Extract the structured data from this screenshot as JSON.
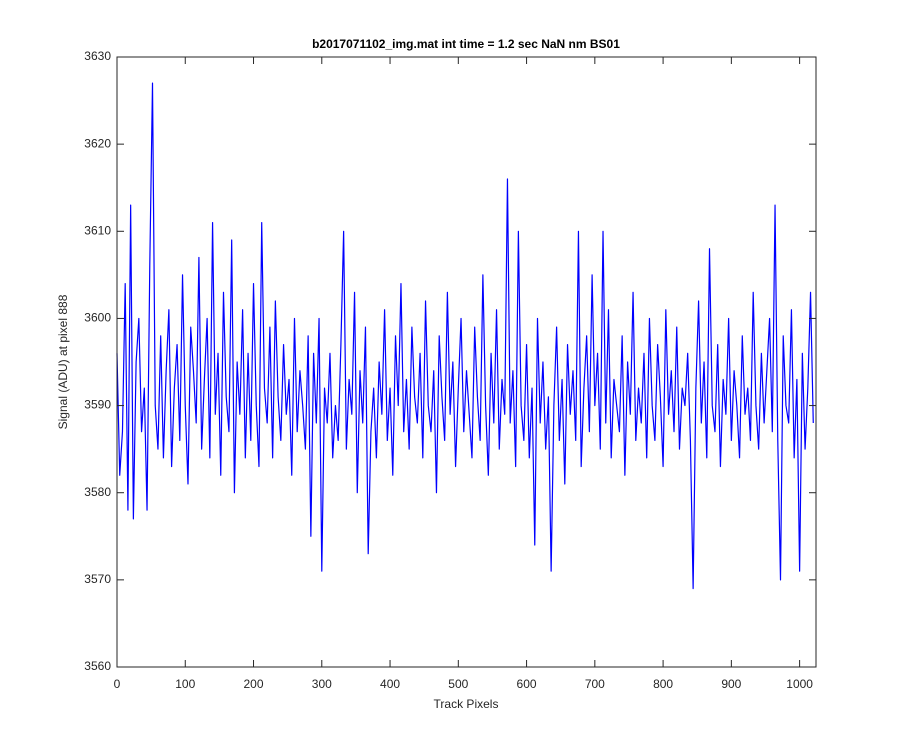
{
  "chart_data": {
    "type": "line",
    "title": "b2017071102_img.mat int time = 1.2 sec  NaN nm BS01",
    "xlabel": "Track Pixels",
    "ylabel": "Signal (ADU) at pixel 888",
    "xlim": [
      0,
      1024
    ],
    "xticks": [
      0,
      100,
      200,
      300,
      400,
      500,
      600,
      700,
      800,
      900,
      1000
    ],
    "ylim": [
      3560,
      3630
    ],
    "yticks": [
      3560,
      3570,
      3580,
      3590,
      3600,
      3610,
      3620,
      3630
    ],
    "grid": false,
    "x": [
      0,
      4,
      8,
      12,
      16,
      20,
      24,
      28,
      32,
      36,
      40,
      44,
      48,
      52,
      56,
      60,
      64,
      68,
      72,
      76,
      80,
      84,
      88,
      92,
      96,
      100,
      104,
      108,
      112,
      116,
      120,
      124,
      128,
      132,
      136,
      140,
      144,
      148,
      152,
      156,
      160,
      164,
      168,
      172,
      176,
      180,
      184,
      188,
      192,
      196,
      200,
      204,
      208,
      212,
      216,
      220,
      224,
      228,
      232,
      236,
      240,
      244,
      248,
      252,
      256,
      260,
      264,
      268,
      272,
      276,
      280,
      284,
      288,
      292,
      296,
      300,
      304,
      308,
      312,
      316,
      320,
      324,
      328,
      332,
      336,
      340,
      344,
      348,
      352,
      356,
      360,
      364,
      368,
      372,
      376,
      380,
      384,
      388,
      392,
      396,
      400,
      404,
      408,
      412,
      416,
      420,
      424,
      428,
      432,
      436,
      440,
      444,
      448,
      452,
      456,
      460,
      464,
      468,
      472,
      476,
      480,
      484,
      488,
      492,
      496,
      500,
      504,
      508,
      512,
      516,
      520,
      524,
      528,
      532,
      536,
      540,
      544,
      548,
      552,
      556,
      560,
      564,
      568,
      572,
      576,
      580,
      584,
      588,
      592,
      596,
      600,
      604,
      608,
      612,
      616,
      620,
      624,
      628,
      632,
      636,
      640,
      644,
      648,
      652,
      656,
      660,
      664,
      668,
      672,
      676,
      680,
      684,
      688,
      692,
      696,
      700,
      704,
      708,
      712,
      716,
      720,
      724,
      728,
      732,
      736,
      740,
      744,
      748,
      752,
      756,
      760,
      764,
      768,
      772,
      776,
      780,
      784,
      788,
      792,
      796,
      800,
      804,
      808,
      812,
      816,
      820,
      824,
      828,
      832,
      836,
      840,
      844,
      848,
      852,
      856,
      860,
      864,
      868,
      872,
      876,
      880,
      884,
      888,
      892,
      896,
      900,
      904,
      908,
      912,
      916,
      920,
      924,
      928,
      932,
      936,
      940,
      944,
      948,
      952,
      956,
      960,
      964,
      968,
      972,
      976,
      980,
      984,
      988,
      992,
      996,
      1000,
      1004,
      1008,
      1012,
      1016,
      1020
    ],
    "series": [
      {
        "name": "signal",
        "color": "#0000ff",
        "values": [
          3596,
          3582,
          3587,
          3604,
          3578,
          3613,
          3577,
          3595,
          3600,
          3587,
          3592,
          3578,
          3606,
          3627,
          3590,
          3585,
          3598,
          3584,
          3594,
          3601,
          3583,
          3592,
          3597,
          3586,
          3605,
          3590,
          3581,
          3599,
          3594,
          3588,
          3607,
          3585,
          3593,
          3600,
          3584,
          3611,
          3589,
          3596,
          3582,
          3603,
          3591,
          3587,
          3609,
          3580,
          3595,
          3589,
          3601,
          3584,
          3596,
          3586,
          3604,
          3590,
          3583,
          3611,
          3592,
          3588,
          3599,
          3584,
          3602,
          3591,
          3586,
          3597,
          3589,
          3593,
          3582,
          3600,
          3587,
          3594,
          3590,
          3585,
          3598,
          3575,
          3596,
          3588,
          3600,
          3571,
          3592,
          3588,
          3596,
          3584,
          3590,
          3586,
          3597,
          3610,
          3585,
          3593,
          3589,
          3603,
          3580,
          3594,
          3588,
          3599,
          3573,
          3587,
          3592,
          3584,
          3595,
          3589,
          3601,
          3586,
          3592,
          3582,
          3598,
          3590,
          3604,
          3587,
          3593,
          3585,
          3599,
          3591,
          3588,
          3596,
          3584,
          3602,
          3590,
          3587,
          3594,
          3580,
          3598,
          3591,
          3586,
          3603,
          3589,
          3595,
          3583,
          3592,
          3600,
          3587,
          3594,
          3589,
          3584,
          3599,
          3591,
          3586,
          3605,
          3590,
          3582,
          3596,
          3588,
          3601,
          3585,
          3593,
          3589,
          3616,
          3588,
          3594,
          3583,
          3610,
          3590,
          3586,
          3597,
          3584,
          3592,
          3574,
          3600,
          3588,
          3595,
          3585,
          3591,
          3571,
          3590,
          3599,
          3586,
          3593,
          3581,
          3597,
          3589,
          3594,
          3586,
          3610,
          3583,
          3592,
          3598,
          3587,
          3605,
          3590,
          3596,
          3585,
          3610,
          3588,
          3601,
          3584,
          3593,
          3590,
          3587,
          3598,
          3582,
          3595,
          3589,
          3603,
          3586,
          3592,
          3588,
          3596,
          3584,
          3600,
          3590,
          3586,
          3597,
          3591,
          3583,
          3601,
          3589,
          3594,
          3587,
          3599,
          3585,
          3592,
          3590,
          3596,
          3586,
          3569,
          3592,
          3602,
          3588,
          3595,
          3584,
          3608,
          3590,
          3587,
          3597,
          3583,
          3593,
          3589,
          3600,
          3586,
          3594,
          3590,
          3584,
          3598,
          3589,
          3592,
          3586,
          3603,
          3590,
          3585,
          3596,
          3588,
          3594,
          3600,
          3587,
          3613,
          3586,
          3570,
          3598,
          3590,
          3588,
          3601,
          3584,
          3593,
          3571,
          3596,
          3585,
          3592,
          3603,
          3588
        ]
      }
    ]
  }
}
